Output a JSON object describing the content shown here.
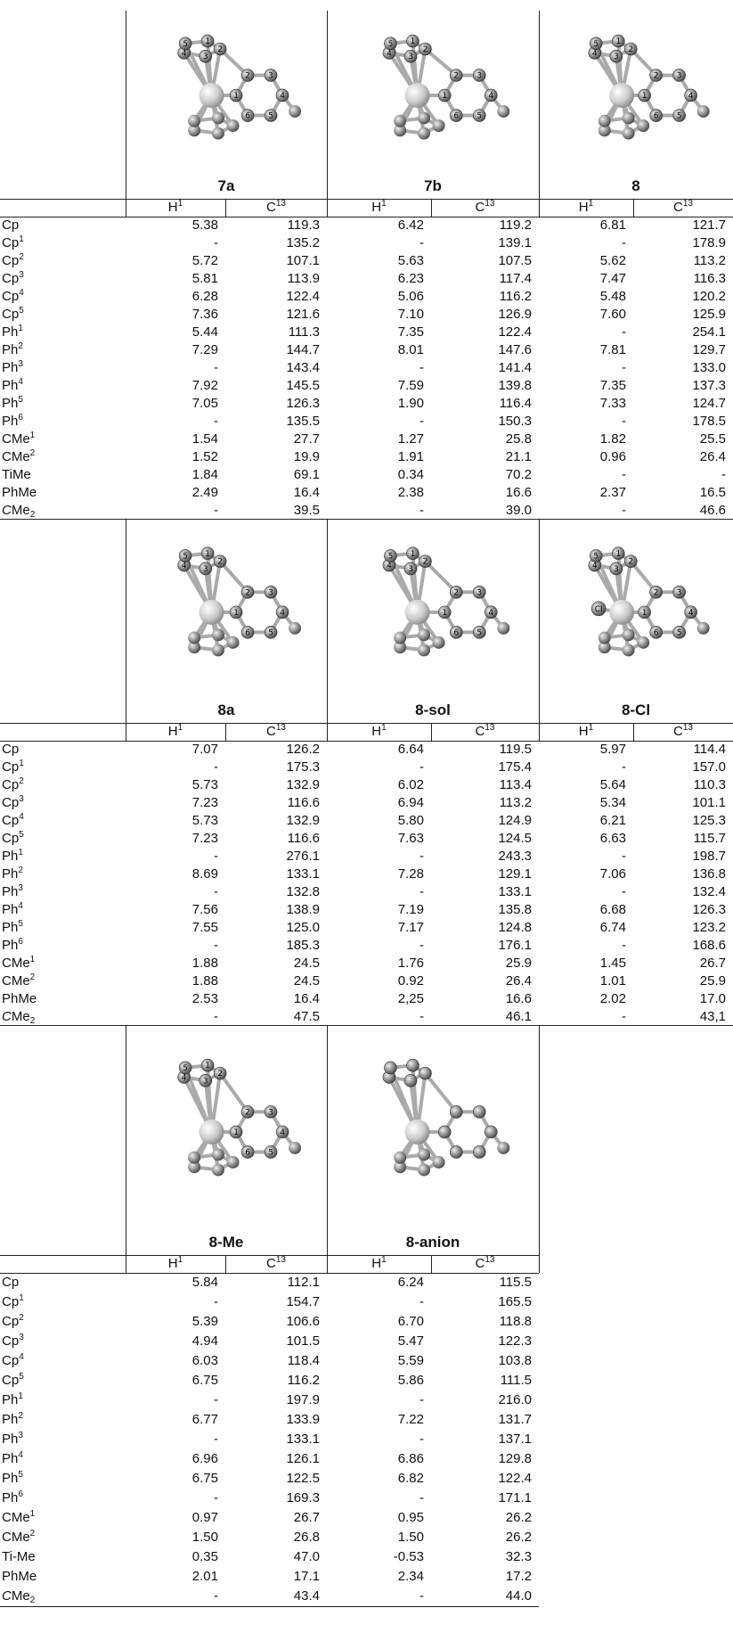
{
  "blocks": [
    {
      "compounds": [
        {
          "name": "7a",
          "cp_atoms": [
            "1",
            "2",
            "3",
            "4",
            "5"
          ],
          "ph_atoms": [
            "1",
            "2",
            "3",
            "4",
            "5",
            "6"
          ]
        },
        {
          "name": "7b",
          "cp_atoms": [
            "1",
            "2",
            "3",
            "4",
            "5"
          ],
          "ph_atoms": [
            "1",
            "2",
            "3",
            "4",
            "5",
            "6"
          ]
        },
        {
          "name": "8",
          "cp_atoms": [
            "1",
            "2",
            "3",
            "4",
            "5"
          ],
          "ph_atoms": [
            "1",
            "2",
            "3",
            "4",
            "5",
            "6"
          ]
        }
      ],
      "header": [
        {
          "sup": "1",
          "text": "H"
        },
        {
          "sup": "13",
          "text": "C"
        },
        {
          "sup": "1",
          "text": "H"
        },
        {
          "sup": "13",
          "text": "C"
        },
        {
          "sup": "1",
          "text": "H"
        },
        {
          "sup": "13",
          "text": "C"
        }
      ],
      "rows": [
        {
          "label": {
            "text": "Cp"
          },
          "values": [
            "5.38",
            "119.3",
            "6.42",
            "119.2",
            "6.81",
            "121.7"
          ]
        },
        {
          "label": {
            "text": "Cp",
            "sup": "1"
          },
          "values": [
            "-",
            "135.2",
            "-",
            "139.1",
            "-",
            "178.9"
          ]
        },
        {
          "label": {
            "text": "Cp",
            "sup": "2"
          },
          "values": [
            "5.72",
            "107.1",
            "5.63",
            "107.5",
            "5.62",
            "113.2"
          ]
        },
        {
          "label": {
            "text": "Cp",
            "sup": "3"
          },
          "values": [
            "5.81",
            "113.9",
            "6.23",
            "117.4",
            "7.47",
            "116.3"
          ]
        },
        {
          "label": {
            "text": "Cp",
            "sup": "4"
          },
          "values": [
            "6.28",
            "122.4",
            "5.06",
            "116.2",
            "5.48",
            "120.2"
          ]
        },
        {
          "label": {
            "text": "Cp",
            "sup": "5"
          },
          "values": [
            "7.36",
            "121.6",
            "7.10",
            "126.9",
            "7.60",
            "125.9"
          ]
        },
        {
          "label": {
            "text": "Ph",
            "sup": "1"
          },
          "values": [
            "5.44",
            "111.3",
            "7.35",
            "122.4",
            "-",
            "254.1"
          ]
        },
        {
          "label": {
            "text": "Ph",
            "sup": "2"
          },
          "values": [
            "7.29",
            "144.7",
            "8.01",
            "147.6",
            "7.81",
            "129.7"
          ]
        },
        {
          "label": {
            "text": "Ph",
            "sup": "3"
          },
          "values": [
            "-",
            "143.4",
            "-",
            "141.4",
            "-",
            "133.0"
          ]
        },
        {
          "label": {
            "text": "Ph",
            "sup": "4"
          },
          "values": [
            "7.92",
            "145.5",
            "7.59",
            "139.8",
            "7.35",
            "137.3"
          ]
        },
        {
          "label": {
            "text": "Ph",
            "sup": "5"
          },
          "values": [
            "7.05",
            "126.3",
            "1.90",
            "116.4",
            "7.33",
            "124.7"
          ]
        },
        {
          "label": {
            "text": "Ph",
            "sup": "6"
          },
          "values": [
            "-",
            "135.5",
            "-",
            "150.3",
            "-",
            "178.5"
          ]
        },
        {
          "label": {
            "text": "CMe",
            "sup": "1"
          },
          "values": [
            "1.54",
            "27.7",
            "1.27",
            "25.8",
            "1.82",
            "25.5"
          ]
        },
        {
          "label": {
            "text": "CMe",
            "sup": "2"
          },
          "values": [
            "1.52",
            "19.9",
            "1.91",
            "21.1",
            "0.96",
            "26.4"
          ]
        },
        {
          "label": {
            "text": "TiMe"
          },
          "values": [
            "1.84",
            "69.1",
            "0.34",
            "70.2",
            "-",
            "-"
          ]
        },
        {
          "label": {
            "text": "PhMe"
          },
          "values": [
            "2.49",
            "16.4",
            "2.38",
            "16.6",
            "2.37",
            "16.5"
          ]
        },
        {
          "label": {
            "italic": "C",
            "text": "Me",
            "sub": "2"
          },
          "values": [
            "-",
            "39.5",
            "-",
            "39.0",
            "-",
            "46.6"
          ]
        }
      ]
    },
    {
      "compounds": [
        {
          "name": "8a",
          "cp_atoms": [
            "1",
            "2",
            "3",
            "4",
            "5"
          ],
          "ph_atoms": [
            "1",
            "2",
            "3",
            "4",
            "5",
            "6"
          ]
        },
        {
          "name": "8-sol",
          "cp_atoms": [
            "1",
            "2",
            "3",
            "4",
            "5"
          ],
          "ph_atoms": [
            "1",
            "2",
            "3",
            "4",
            "5",
            "6"
          ]
        },
        {
          "name": "8-Cl",
          "cp_atoms": [
            "1",
            "2",
            "3",
            "4",
            "5"
          ],
          "ph_atoms": [
            "1",
            "2",
            "3",
            "4",
            "5",
            "6"
          ],
          "ligand": "Cl"
        }
      ],
      "header": [
        {
          "sup": "1",
          "text": "H"
        },
        {
          "sup": "13",
          "text": "C"
        },
        {
          "sup": "1",
          "text": "H"
        },
        {
          "sup": "13",
          "text": "C"
        },
        {
          "sup": "1",
          "text": "H"
        },
        {
          "sup": "13",
          "text": "C"
        }
      ],
      "rows": [
        {
          "label": {
            "text": "Cp"
          },
          "values": [
            "7.07",
            "126.2",
            "6.64",
            "119.5",
            "5.97",
            "114.4"
          ]
        },
        {
          "label": {
            "text": "Cp",
            "sup": "1"
          },
          "values": [
            "-",
            "175.3",
            "-",
            "175.4",
            "-",
            "157.0"
          ]
        },
        {
          "label": {
            "text": "Cp",
            "sup": "2"
          },
          "values": [
            "5.73",
            "132.9",
            "6.02",
            "113.4",
            "5.64",
            "110.3"
          ]
        },
        {
          "label": {
            "text": "Cp",
            "sup": "3"
          },
          "values": [
            "7.23",
            "116.6",
            "6.94",
            "113.2",
            "5.34",
            "101.1"
          ]
        },
        {
          "label": {
            "text": "Cp",
            "sup": "4"
          },
          "values": [
            "5.73",
            "132.9",
            "5.80",
            "124.9",
            "6.21",
            "125.3"
          ]
        },
        {
          "label": {
            "text": "Cp",
            "sup": "5"
          },
          "values": [
            "7.23",
            "116.6",
            "7.63",
            "124.5",
            "6.63",
            "115.7"
          ]
        },
        {
          "label": {
            "text": "Ph",
            "sup": "1"
          },
          "values": [
            "-",
            "276.1",
            "-",
            "243.3",
            "-",
            "198.7"
          ]
        },
        {
          "label": {
            "text": "Ph",
            "sup": "2"
          },
          "values": [
            "8.69",
            "133.1",
            "7.28",
            "129.1",
            "7.06",
            "136.8"
          ]
        },
        {
          "label": {
            "text": "Ph",
            "sup": "3"
          },
          "values": [
            "-",
            "132.8",
            "-",
            "133.1",
            "-",
            "132.4"
          ]
        },
        {
          "label": {
            "text": "Ph",
            "sup": "4"
          },
          "values": [
            "7.56",
            "138.9",
            "7.19",
            "135.8",
            "6.68",
            "126.3"
          ]
        },
        {
          "label": {
            "text": "Ph",
            "sup": "5"
          },
          "values": [
            "7.55",
            "125.0",
            "7.17",
            "124.8",
            "6.74",
            "123.2"
          ]
        },
        {
          "label": {
            "text": "Ph",
            "sup": "6"
          },
          "values": [
            "-",
            "185.3",
            "-",
            "176.1",
            "-",
            "168.6"
          ]
        },
        {
          "label": {
            "text": "CMe",
            "sup": "1"
          },
          "values": [
            "1.88",
            "24.5",
            "1.76",
            "25.9",
            "1.45",
            "26.7"
          ]
        },
        {
          "label": {
            "text": "CMe",
            "sup": "2"
          },
          "values": [
            "1.88",
            "24.5",
            "0.92",
            "26.4",
            "1.01",
            "25.9"
          ]
        },
        {
          "label": {
            "text": "PhMe"
          },
          "values": [
            "2.53",
            "16.4",
            "2,25",
            "16.6",
            "2.02",
            "17.0"
          ]
        },
        {
          "label": {
            "italic": "C",
            "text": "Me",
            "sub": "2"
          },
          "values": [
            "-",
            "47.5",
            "-",
            "46.1",
            "-",
            "43,1"
          ]
        }
      ]
    },
    {
      "compounds": [
        {
          "name": "8-Me",
          "cp_atoms": [
            "1",
            "2",
            "3",
            "4",
            "5"
          ],
          "ph_atoms": [
            "1",
            "2",
            "3",
            "4",
            "5",
            "6"
          ]
        },
        {
          "name": "8-anion"
        }
      ],
      "header": [
        {
          "sup": "1",
          "text": "H"
        },
        {
          "sup": "13",
          "text": "C"
        },
        {
          "sup": "1",
          "text": "H"
        },
        {
          "sup": "13",
          "text": "C"
        }
      ],
      "rows": [
        {
          "label": {
            "text": "Cp"
          },
          "values": [
            "5.84",
            "112.1",
            "6.24",
            "115.5"
          ]
        },
        {
          "label": {
            "text": "Cp",
            "sup": "1"
          },
          "values": [
            "-",
            "154.7",
            "-",
            "165.5"
          ]
        },
        {
          "label": {
            "text": "Cp",
            "sup": "2"
          },
          "values": [
            "5.39",
            "106.6",
            "6.70",
            "118.8"
          ]
        },
        {
          "label": {
            "text": "Cp",
            "sup": "3"
          },
          "values": [
            "4.94",
            "101.5",
            "5.47",
            "122.3"
          ]
        },
        {
          "label": {
            "text": "Cp",
            "sup": "4"
          },
          "values": [
            "6.03",
            "118.4",
            "5.59",
            "103.8"
          ]
        },
        {
          "label": {
            "text": "Cp",
            "sup": "5"
          },
          "values": [
            "6.75",
            "116.2",
            "5.86",
            "111.5"
          ]
        },
        {
          "label": {
            "text": "Ph",
            "sup": "1"
          },
          "values": [
            "-",
            "197.9",
            "-",
            "216.0"
          ]
        },
        {
          "label": {
            "text": "Ph",
            "sup": "2"
          },
          "values": [
            "6.77",
            "133.9",
            "7.22",
            "131.7"
          ]
        },
        {
          "label": {
            "text": "Ph",
            "sup": "3"
          },
          "values": [
            "-",
            "133.1",
            "-",
            "137.1"
          ]
        },
        {
          "label": {
            "text": "Ph",
            "sup": "4"
          },
          "values": [
            "6.96",
            "126.1",
            "6.86",
            "129.8"
          ]
        },
        {
          "label": {
            "text": "Ph",
            "sup": "5"
          },
          "values": [
            "6.75",
            "122.5",
            "6.82",
            "122.4"
          ]
        },
        {
          "label": {
            "text": "Ph",
            "sup": "6"
          },
          "values": [
            "-",
            "169.3",
            "-",
            "171.1"
          ]
        },
        {
          "label": {
            "text": "CMe",
            "sup": "1"
          },
          "values": [
            "0.97",
            "26.7",
            "0.95",
            "26.2"
          ]
        },
        {
          "label": {
            "text": "CMe",
            "sup": "2"
          },
          "values": [
            "1.50",
            "26.8",
            "1.50",
            "26.2"
          ]
        },
        {
          "label": {
            "text": "Ti-Me"
          },
          "values": [
            "0.35",
            "47.0",
            "-0.53",
            "32.3"
          ]
        },
        {
          "label": {
            "text": "PhMe"
          },
          "values": [
            "2.01",
            "17.1",
            "2.34",
            "17.2"
          ]
        },
        {
          "label": {
            "italic": "C",
            "text": "Me",
            "sub": "2"
          },
          "values": [
            "-",
            "43.4",
            "-",
            "44.0"
          ]
        }
      ]
    }
  ]
}
